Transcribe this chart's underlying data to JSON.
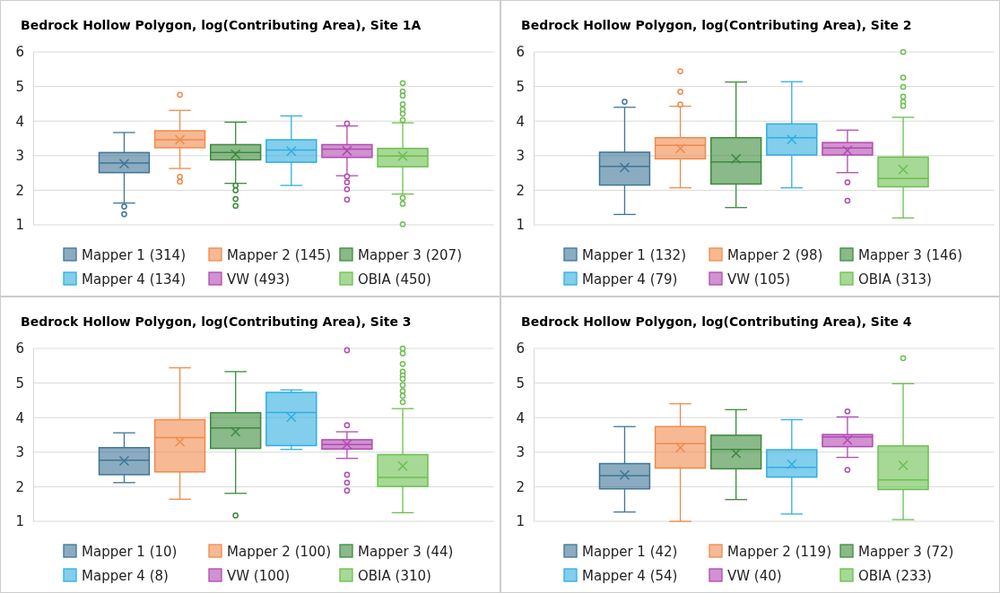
{
  "chart_data": [
    {
      "type": "box",
      "title": "Bedrock Hollow Polygon, log(Contributing Area),  Site 1A",
      "categories": [
        null
      ],
      "ylim": [
        1,
        6
      ],
      "yticks": [
        1,
        2,
        3,
        4,
        5,
        6
      ],
      "grid": "y",
      "tick_labels": "y",
      "legend": "bottom",
      "marker": "cross",
      "series": [
        {
          "name": "Mapper 1 (314)",
          "color": "#3e7596",
          "boxes": [
            {
              "low": 1.63,
              "q1": 2.51,
              "median": 2.79,
              "q3": 3.09,
              "high": 3.67,
              "mean": 2.77,
              "outliers": [
                1.53,
                1.31
              ]
            }
          ]
        },
        {
          "name": "Mapper 2 (145)",
          "color": "#f08a4b",
          "boxes": [
            {
              "low": 2.63,
              "q1": 3.23,
              "median": 3.46,
              "q3": 3.72,
              "high": 4.31,
              "mean": 3.46,
              "outliers": [
                4.76,
                2.39,
                2.25
              ]
            }
          ]
        },
        {
          "name": "Mapper 3 (207)",
          "color": "#3c8a3c",
          "boxes": [
            {
              "low": 2.2,
              "q1": 2.88,
              "median": 3.09,
              "q3": 3.32,
              "high": 3.97,
              "mean": 3.04,
              "outliers": [
                2.14,
                2.0,
                1.75,
                1.55
              ]
            }
          ]
        },
        {
          "name": "Mapper 4 (134)",
          "color": "#2eaee0",
          "boxes": [
            {
              "low": 2.14,
              "q1": 2.81,
              "median": 3.16,
              "q3": 3.46,
              "high": 4.15,
              "mean": 3.13
            }
          ]
        },
        {
          "name": "VW (493)",
          "color": "#b04ab0",
          "boxes": [
            {
              "low": 2.42,
              "q1": 2.95,
              "median": 3.19,
              "q3": 3.32,
              "high": 3.86,
              "mean": 3.14,
              "outliers": [
                3.93,
                2.4,
                2.23,
                2.03,
                1.73
              ]
            }
          ]
        },
        {
          "name": "OBIA (450)",
          "color": "#6bbf4e",
          "boxes": [
            {
              "low": 1.89,
              "q1": 2.68,
              "median": 2.99,
              "q3": 3.21,
              "high": 3.95,
              "mean": 2.99,
              "outliers": [
                5.1,
                4.86,
                4.74,
                4.49,
                4.34,
                4.21,
                4.03,
                1.78,
                1.61,
                1.02
              ]
            }
          ]
        }
      ]
    },
    {
      "type": "box",
      "title": "Bedrock Hollow Polygon, log(Contributing Area),  Site 2",
      "categories": [
        null
      ],
      "ylim": [
        1,
        6
      ],
      "yticks": [
        1,
        2,
        3,
        4,
        5,
        6
      ],
      "grid": "y",
      "tick_labels": "y",
      "legend": "bottom",
      "marker": "cross",
      "series": [
        {
          "name": "Mapper 1 (132)",
          "color": "#3e7596",
          "boxes": [
            {
              "low": 1.3,
              "q1": 2.15,
              "median": 2.69,
              "q3": 3.1,
              "high": 4.4,
              "mean": 2.66,
              "outliers": [
                4.56
              ]
            }
          ]
        },
        {
          "name": "Mapper 2 (98)",
          "color": "#f08a4b",
          "boxes": [
            {
              "low": 2.07,
              "q1": 2.91,
              "median": 3.3,
              "q3": 3.52,
              "high": 4.43,
              "mean": 3.21,
              "outliers": [
                5.44,
                4.85,
                4.48
              ]
            }
          ]
        },
        {
          "name": "Mapper 3 (146)",
          "color": "#3c8a3c",
          "boxes": [
            {
              "low": 1.5,
              "q1": 2.18,
              "median": 2.82,
              "q3": 3.52,
              "high": 5.13,
              "mean": 2.91
            }
          ]
        },
        {
          "name": "Mapper 4 (79)",
          "color": "#2eaee0",
          "boxes": [
            {
              "low": 2.07,
              "q1": 3.02,
              "median": 3.52,
              "q3": 3.92,
              "high": 5.14,
              "mean": 3.47
            }
          ]
        },
        {
          "name": "VW (105)",
          "color": "#b04ab0",
          "boxes": [
            {
              "low": 2.51,
              "q1": 3.02,
              "median": 3.22,
              "q3": 3.38,
              "high": 3.74,
              "mean": 3.15,
              "outliers": [
                2.23,
                1.7
              ]
            }
          ]
        },
        {
          "name": "OBIA (313)",
          "color": "#6bbf4e",
          "boxes": [
            {
              "low": 1.2,
              "q1": 2.1,
              "median": 2.34,
              "q3": 2.96,
              "high": 4.11,
              "mean": 2.6,
              "outliers": [
                6.0,
                5.26,
                4.99,
                4.71,
                4.56,
                4.44
              ]
            }
          ]
        }
      ]
    },
    {
      "type": "box",
      "title": "Bedrock Hollow Polygon, log(Contributing Area),  Site 3",
      "categories": [
        null
      ],
      "ylim": [
        1,
        6
      ],
      "yticks": [
        1,
        2,
        3,
        4,
        5,
        6
      ],
      "grid": "y",
      "tick_labels": "y",
      "legend": "bottom",
      "marker": "cross",
      "series": [
        {
          "name": "Mapper 1 (10)",
          "color": "#3e7596",
          "boxes": [
            {
              "low": 2.12,
              "q1": 2.35,
              "median": 2.77,
              "q3": 3.13,
              "high": 3.56,
              "mean": 2.75
            }
          ]
        },
        {
          "name": "Mapper 2 (100)",
          "color": "#f08a4b",
          "boxes": [
            {
              "low": 1.64,
              "q1": 2.43,
              "median": 3.42,
              "q3": 3.94,
              "high": 5.44,
              "mean": 3.3
            }
          ]
        },
        {
          "name": "Mapper 3 (44)",
          "color": "#3c8a3c",
          "boxes": [
            {
              "low": 1.81,
              "q1": 3.11,
              "median": 3.7,
              "q3": 4.14,
              "high": 5.33,
              "mean": 3.59,
              "outliers": [
                1.17
              ]
            }
          ]
        },
        {
          "name": "Mapper 4 (8)",
          "color": "#2eaee0",
          "boxes": [
            {
              "low": 3.08,
              "q1": 3.19,
              "median": 4.15,
              "q3": 4.73,
              "high": 4.8,
              "mean": 4.01
            }
          ]
        },
        {
          "name": "VW (100)",
          "color": "#b04ab0",
          "boxes": [
            {
              "low": 2.82,
              "q1": 3.09,
              "median": 3.22,
              "q3": 3.36,
              "high": 3.59,
              "mean": 3.23,
              "outliers": [
                5.95,
                3.78,
                2.35,
                2.12,
                1.89
              ]
            }
          ]
        },
        {
          "name": "OBIA (310)",
          "color": "#6bbf4e",
          "boxes": [
            {
              "low": 1.25,
              "q1": 2.01,
              "median": 2.27,
              "q3": 2.93,
              "high": 4.26,
              "mean": 2.6,
              "outliers": [
                6.0,
                5.86,
                5.55,
                5.33,
                5.22,
                5.12,
                4.94,
                4.77,
                4.63,
                4.45
              ]
            }
          ]
        }
      ]
    },
    {
      "type": "box",
      "title": "Bedrock Hollow Polygon, log(Contributing Area),  Site 4",
      "categories": [
        null
      ],
      "ylim": [
        1,
        6
      ],
      "yticks": [
        1,
        2,
        3,
        4,
        5,
        6
      ],
      "grid": "y",
      "tick_labels": "y",
      "legend": "bottom",
      "marker": "cross",
      "series": [
        {
          "name": "Mapper 1 (42)",
          "color": "#3e7596",
          "boxes": [
            {
              "low": 1.27,
              "q1": 1.94,
              "median": 2.32,
              "q3": 2.67,
              "high": 3.74,
              "mean": 2.34
            }
          ]
        },
        {
          "name": "Mapper 2 (119)",
          "color": "#f08a4b",
          "boxes": [
            {
              "low": 1.0,
              "q1": 2.54,
              "median": 3.25,
              "q3": 3.74,
              "high": 4.4,
              "mean": 3.13
            }
          ]
        },
        {
          "name": "Mapper 3 (72)",
          "color": "#3c8a3c",
          "boxes": [
            {
              "low": 1.63,
              "q1": 2.52,
              "median": 3.08,
              "q3": 3.49,
              "high": 4.23,
              "mean": 2.97
            }
          ]
        },
        {
          "name": "Mapper 4 (54)",
          "color": "#2eaee0",
          "boxes": [
            {
              "low": 1.21,
              "q1": 2.28,
              "median": 2.56,
              "q3": 3.07,
              "high": 3.94,
              "mean": 2.65
            }
          ]
        },
        {
          "name": "VW (40)",
          "color": "#b04ab0",
          "boxes": [
            {
              "low": 2.85,
              "q1": 3.16,
              "median": 3.44,
              "q3": 3.51,
              "high": 4.02,
              "mean": 3.35,
              "outliers": [
                4.18,
                2.49
              ]
            }
          ]
        },
        {
          "name": "OBIA (233)",
          "color": "#6bbf4e",
          "boxes": [
            {
              "low": 1.05,
              "q1": 1.92,
              "median": 2.2,
              "q3": 3.18,
              "high": 4.98,
              "mean": 2.62,
              "outliers": [
                5.72
              ]
            }
          ]
        }
      ]
    }
  ]
}
